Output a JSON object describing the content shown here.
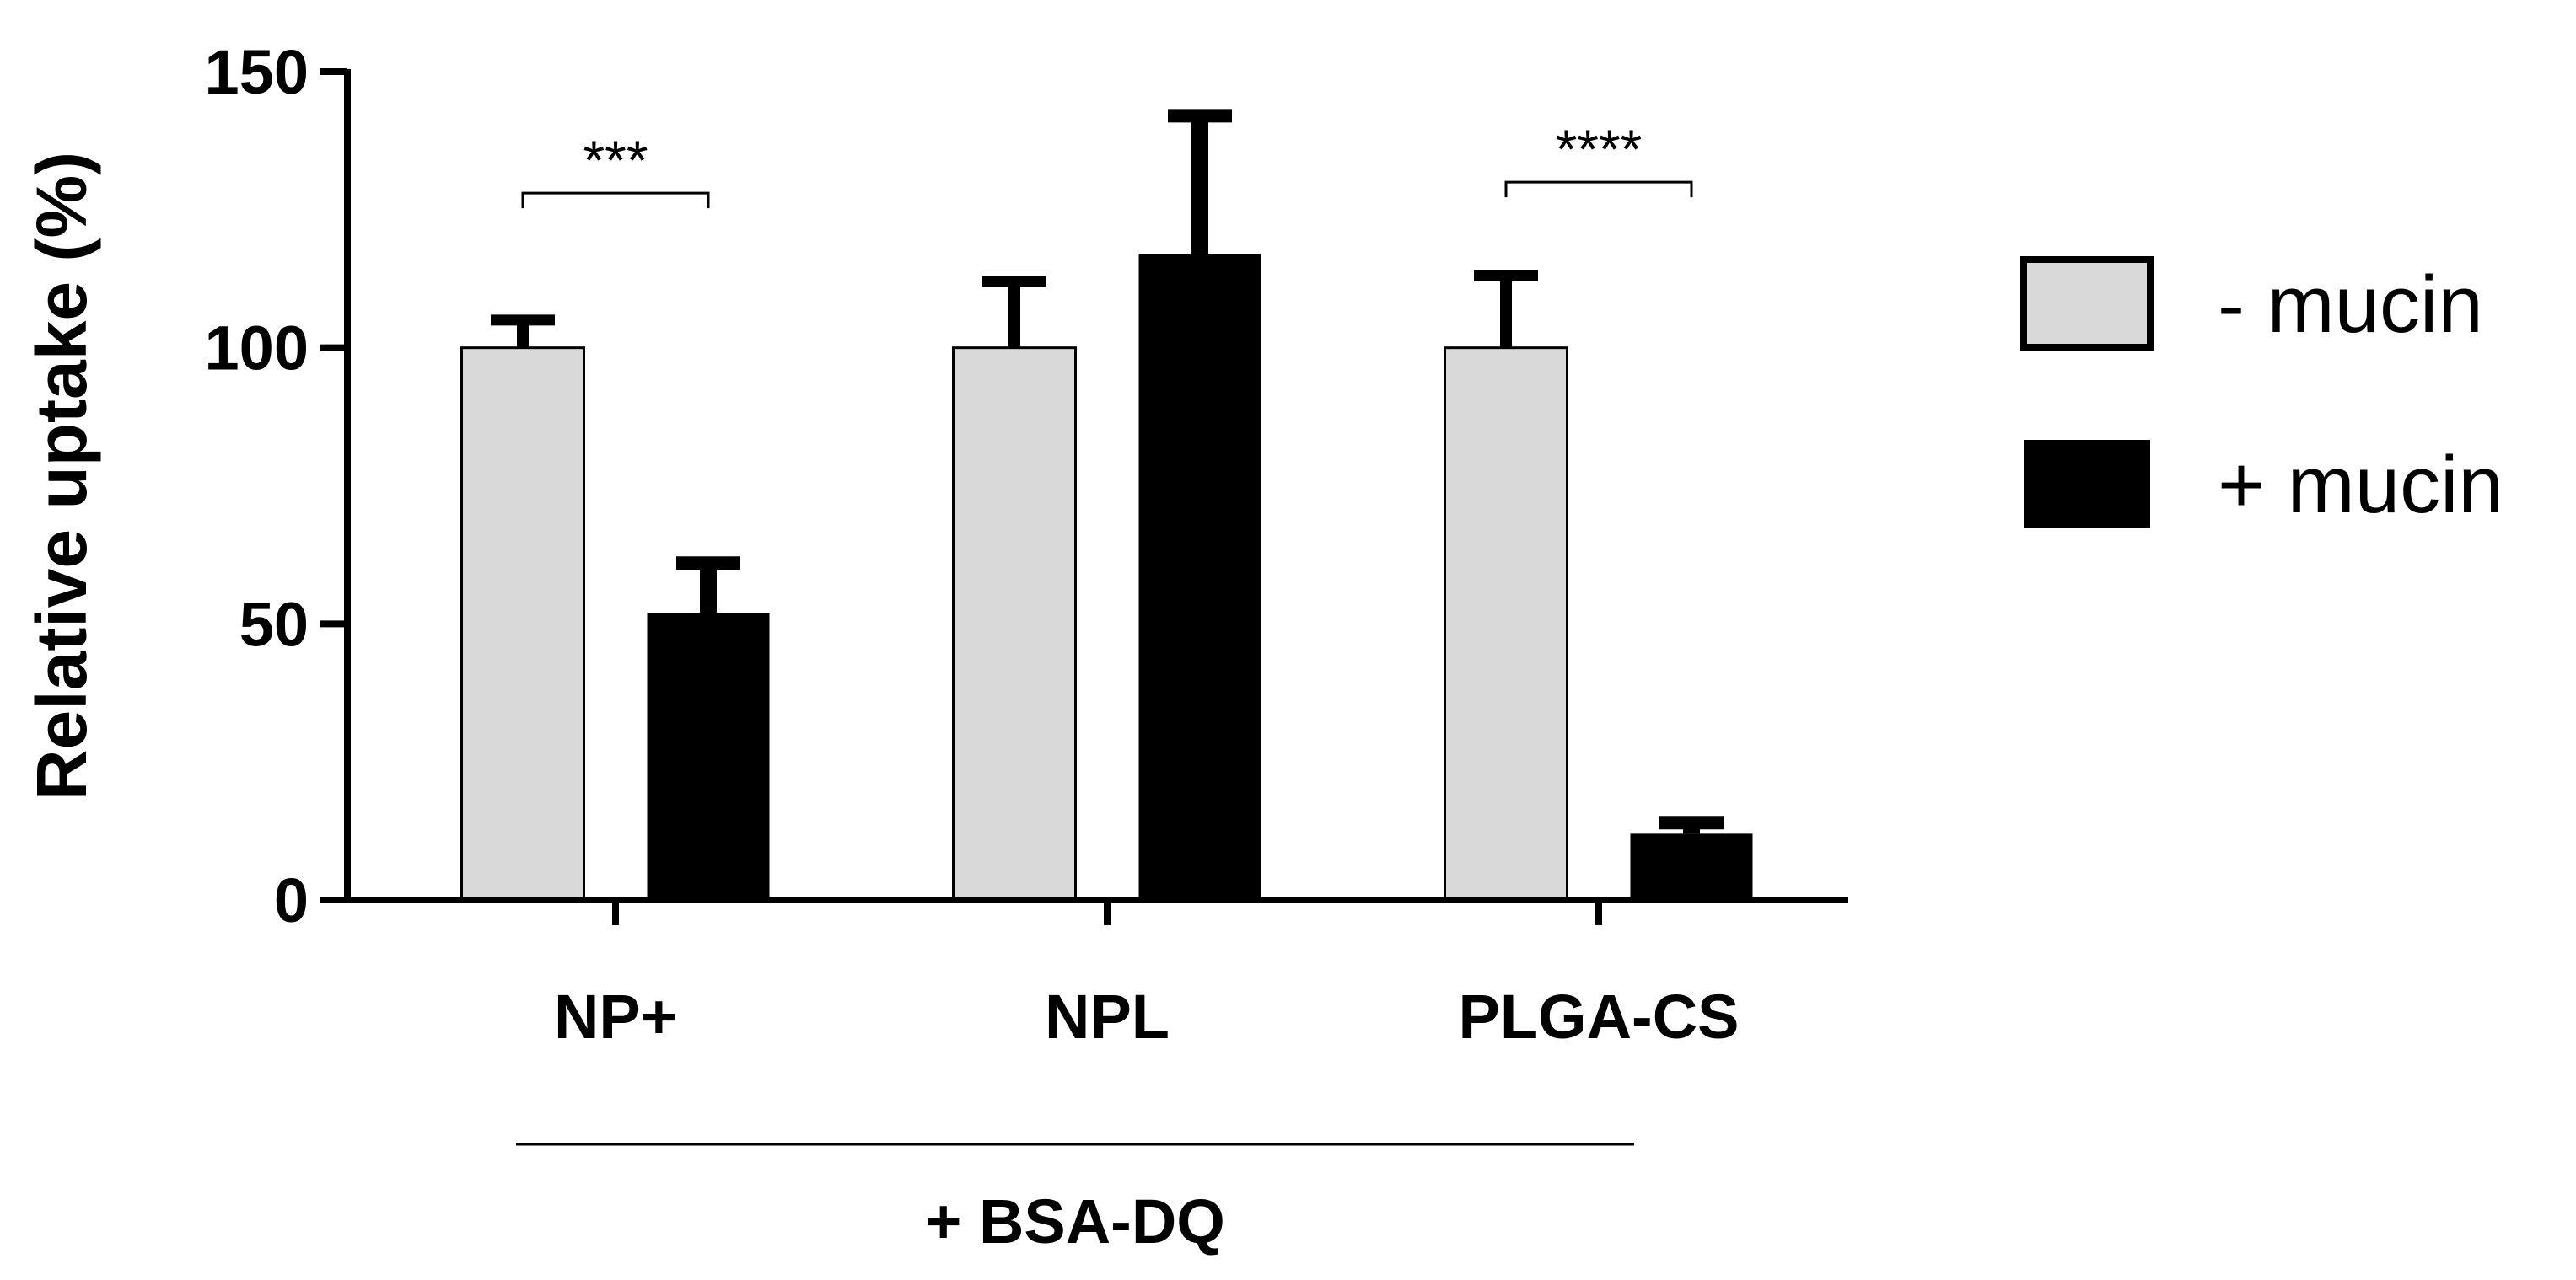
{
  "chart_data": {
    "type": "bar",
    "title": "",
    "xlabel": "",
    "ylabel": "Relative uptake (%)",
    "ylim": [
      0,
      150
    ],
    "yticks": [
      0,
      50,
      100,
      150
    ],
    "categories": [
      "NP+",
      "NPL",
      "PLGA-CS"
    ],
    "series": [
      {
        "name": "- mucin",
        "color": "#d9d9d9",
        "values": [
          100,
          100,
          100
        ],
        "errors": [
          5,
          12,
          13
        ]
      },
      {
        "name": "+ mucin",
        "color": "#000000",
        "values": [
          52,
          117,
          12
        ],
        "errors": [
          9,
          25,
          2
        ]
      }
    ],
    "significance": [
      {
        "category_index": 0,
        "label": "***",
        "y": 128
      },
      {
        "category_index": 1,
        "label": "",
        "y": null
      },
      {
        "category_index": 2,
        "label": "****",
        "y": 130
      }
    ],
    "group_label": "+ BSA-DQ",
    "legend": {
      "position": "right"
    },
    "grid": false
  }
}
